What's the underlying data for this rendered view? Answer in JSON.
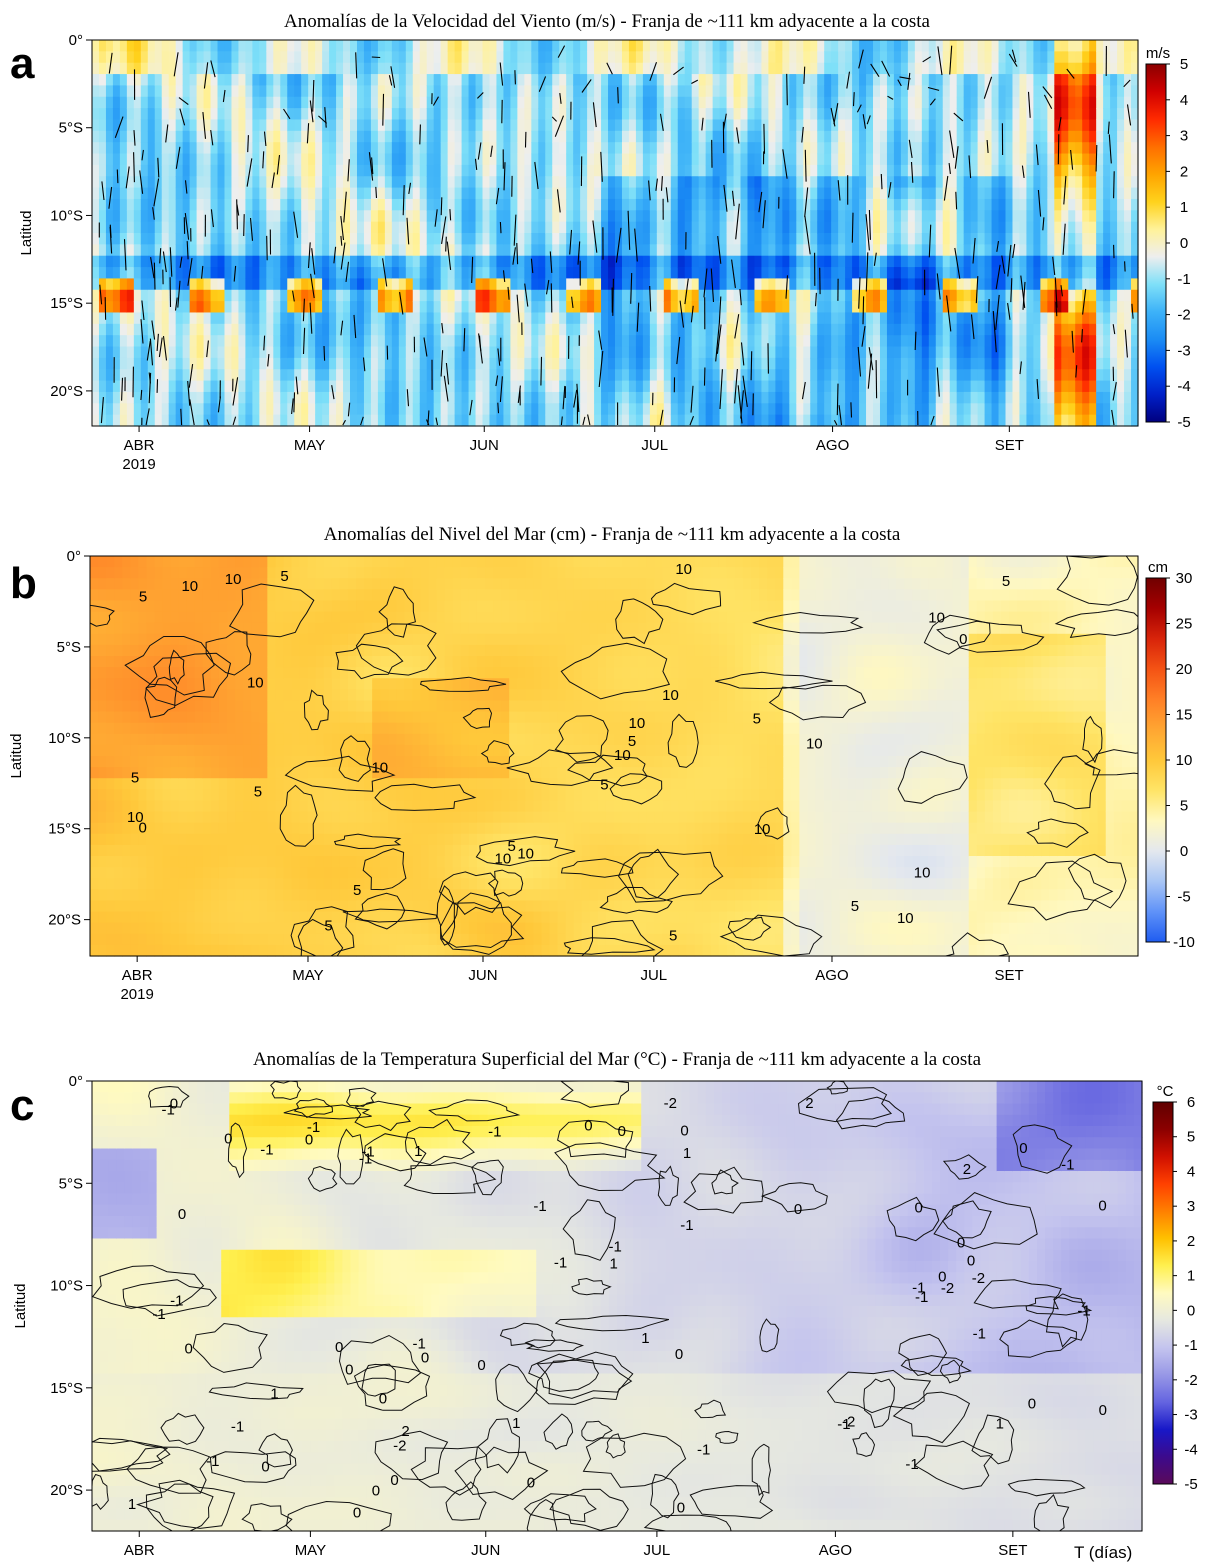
{
  "chart_data": [
    {
      "type": "heatmap",
      "panel_letter": "a",
      "title": "Anomalías de la Velocidad del Viento (m/s) - Franja de ~111 km adyacente a la costa",
      "ylabel": "Latitud",
      "xlabel": "",
      "x_ticks": [
        "ABR",
        "MAY",
        "JUN",
        "JUL",
        "AGO",
        "SET"
      ],
      "x_year": "2019",
      "y_ticks": [
        "0°",
        "5°S",
        "10°S",
        "15°S",
        "20°S"
      ],
      "y_range": [
        0,
        -22
      ],
      "colorbar": {
        "unit": "m/s",
        "range": [
          -5,
          5
        ],
        "ticks": [
          "5",
          "4",
          "3",
          "2",
          "1",
          "0",
          "-1",
          "-2",
          "-3",
          "-4",
          "-5"
        ],
        "colors": [
          "#00007f",
          "#0020c8",
          "#0050f0",
          "#1b8cf4",
          "#3db2f8",
          "#7fe0f8",
          "#eeeeee",
          "#fff29a",
          "#ffd21c",
          "#ffa400",
          "#ff6e00",
          "#ff2a00",
          "#d00000",
          "#8b0000"
        ]
      },
      "overlay": "wind vectors",
      "summary": "Negative anomalies (blue) dominate, strongest near 13-16°S in late June-August; positive anomalies (orange-red) near 14-15°S episodically and strongly in mid-late September."
    },
    {
      "type": "heatmap",
      "panel_letter": "b",
      "title": "Anomalías del Nivel del Mar (cm) - Franja de ~111 km adyacente a la costa",
      "ylabel": "Latitud",
      "xlabel": "",
      "x_ticks": [
        "ABR",
        "MAY",
        "JUN",
        "JUL",
        "AGO",
        "SET"
      ],
      "x_year": "2019",
      "y_ticks": [
        "0°",
        "5°S",
        "10°S",
        "15°S",
        "20°S"
      ],
      "y_range": [
        0,
        -22
      ],
      "colorbar": {
        "unit": "cm",
        "range": [
          -10,
          30
        ],
        "ticks": [
          "30",
          "25",
          "20",
          "15",
          "10",
          "5",
          "0",
          "-5",
          "-10"
        ],
        "colors": [
          "#1f5cf0",
          "#5f92f8",
          "#a9c6f5",
          "#e4e8ee",
          "#fff8c0",
          "#ffe466",
          "#ffc83a",
          "#ffa632",
          "#ff7f26",
          "#f45314",
          "#d8240a",
          "#a50000",
          "#700000"
        ]
      },
      "contour_labels": [
        "10",
        "10",
        "10",
        "10",
        "10",
        "10",
        "10",
        "10",
        "10",
        "10",
        "10",
        "10",
        "10",
        "10",
        "10",
        "10",
        "5",
        "5",
        "5",
        "5",
        "5",
        "5",
        "5",
        "5",
        "5",
        "5",
        "5",
        "5",
        "5",
        "0",
        "0"
      ],
      "summary": "Positive anomalies of 10-15 cm from April to mid-July, decreasing to 0-5 cm from August onward."
    },
    {
      "type": "heatmap",
      "panel_letter": "c",
      "title": "Anomalías de la Temperatura Superficial del Mar (°C) - Franja de ~111 km adyacente a la costa",
      "ylabel": "Latitud",
      "xlabel": "T (días)",
      "x_ticks": [
        "ABR",
        "MAY",
        "JUN",
        "JUL",
        "AGO",
        "SET"
      ],
      "x_year": "2019",
      "y_ticks": [
        "0°",
        "5°S",
        "10°S",
        "15°S",
        "20°S"
      ],
      "y_range": [
        0,
        -22
      ],
      "colorbar": {
        "unit": "°C",
        "range": [
          -5,
          6
        ],
        "ticks": [
          "6",
          "5",
          "4",
          "3",
          "2",
          "1",
          "0",
          "-1",
          "-2",
          "-3",
          "-4",
          "-5"
        ],
        "colors": [
          "#5a0a5a",
          "#3c0a8c",
          "#1818c8",
          "#6464e0",
          "#9898e6",
          "#c4c4ee",
          "#e6e8e0",
          "#fffac0",
          "#fff050",
          "#ffc000",
          "#ff8000",
          "#ff4000",
          "#d01000",
          "#8b0000",
          "#600000"
        ]
      },
      "contour_labels": [
        "2",
        "2",
        "2",
        "1",
        "1",
        "1",
        "1",
        "1",
        "1",
        "1",
        "1",
        "0",
        "0",
        "0",
        "0",
        "0",
        "0",
        "0",
        "0",
        "0",
        "0",
        "0",
        "0",
        "0",
        "0",
        "0",
        "0",
        "0",
        "0",
        "0",
        "0",
        "0",
        "0",
        "0",
        "0",
        "0",
        "0",
        "0",
        "0",
        "0",
        "-1",
        "-1",
        "-1",
        "-1",
        "-1",
        "-1",
        "-1",
        "-1",
        "-1",
        "-1",
        "-1",
        "-1",
        "-1",
        "-1",
        "-1",
        "-1",
        "-1",
        "-1",
        "-1",
        "-1",
        "-1",
        "-1",
        "-1",
        "-2",
        "-2",
        "-2",
        "-2",
        "-2"
      ],
      "summary": "Warm anomalies (+1 to +2 °C) near 1-4°S in May-June and near 10-11°S from late April to June; cool anomalies (-1 to -2 °C) dominate from mid-June onward."
    }
  ]
}
